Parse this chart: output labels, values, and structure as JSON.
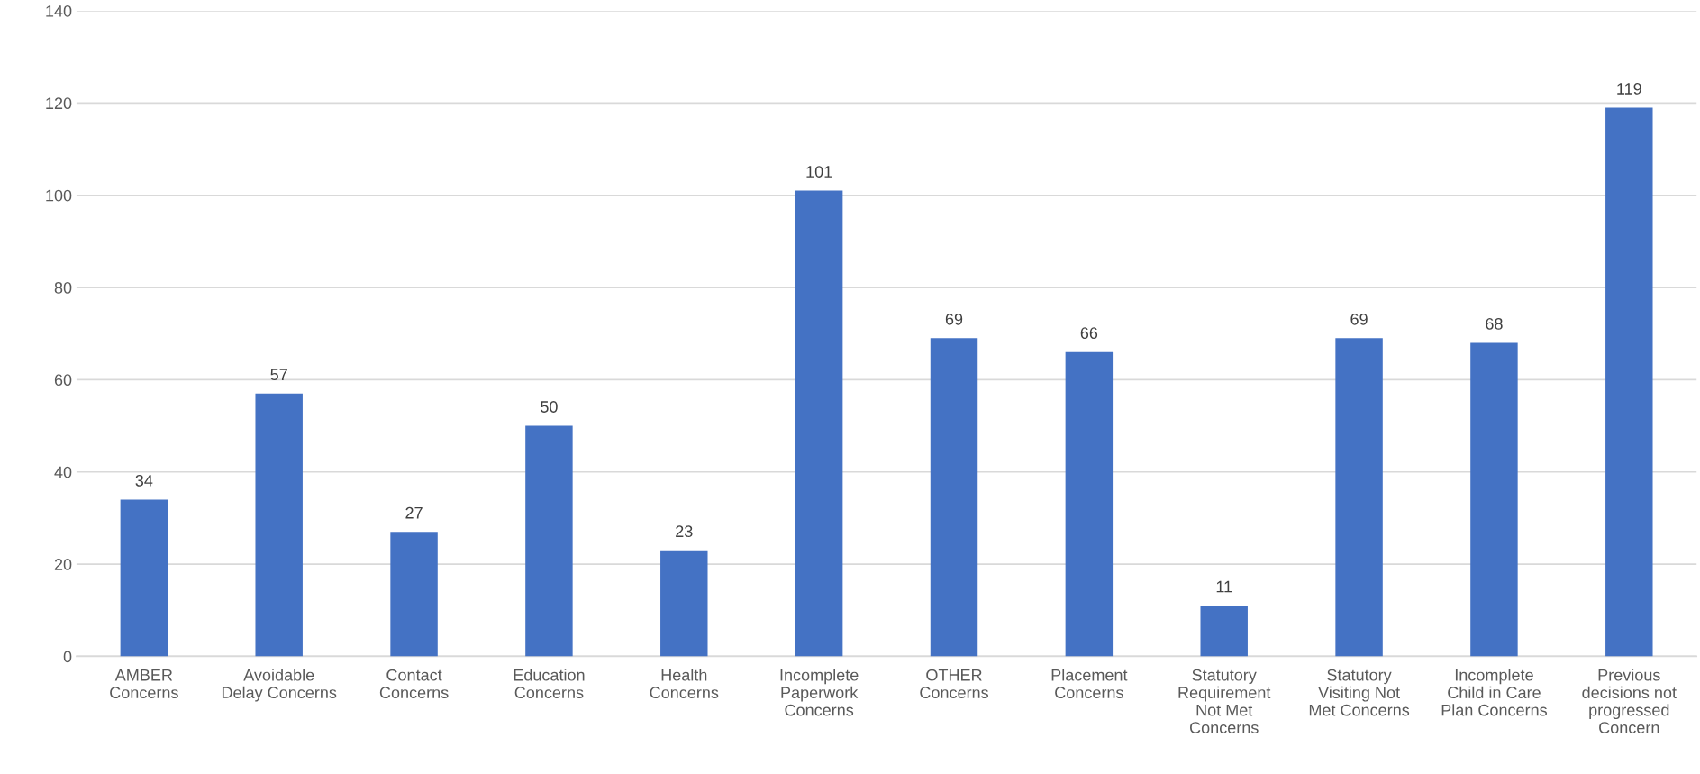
{
  "chart_data": {
    "type": "bar",
    "categories": [
      "AMBER\nConcerns",
      "Avoidable\nDelay Concerns",
      "Contact\nConcerns",
      "Education\nConcerns",
      "Health\nConcerns",
      "Incomplete\nPaperwork\nConcerns",
      "OTHER\nConcerns",
      "Placement\nConcerns",
      "Statutory\nRequirement\nNot Met\nConcerns",
      "Statutory\nVisiting Not\nMet Concerns",
      "Incomplete\nChild in Care\nPlan Concerns",
      "Previous\ndecisions not\nprogressed\nConcern"
    ],
    "values": [
      34,
      57,
      27,
      50,
      23,
      101,
      69,
      66,
      11,
      69,
      68,
      119
    ],
    "color": "#4472c4",
    "ylim": [
      0,
      140
    ],
    "yticks": [
      0,
      20,
      40,
      60,
      80,
      100,
      120,
      140
    ],
    "grid": "y",
    "data_labels": true,
    "legend": false
  }
}
